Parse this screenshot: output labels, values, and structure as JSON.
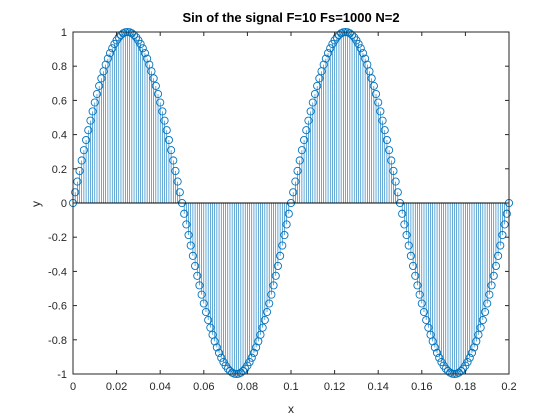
{
  "chart_data": {
    "type": "stem",
    "title": "Sin of the signal F=10 Fs=1000 N=2",
    "xlabel": "x",
    "ylabel": "y",
    "xlim": [
      0,
      0.2
    ],
    "ylim": [
      -1,
      1
    ],
    "x_ticks": [
      "0",
      "0.02",
      "0.04",
      "0.06",
      "0.08",
      "0.1",
      "0.12",
      "0.14",
      "0.16",
      "0.18",
      "0.2"
    ],
    "y_ticks": [
      "-1",
      "-0.8",
      "-0.6",
      "-0.4",
      "-0.2",
      "0",
      "0.2",
      "0.4",
      "0.6",
      "0.8",
      "1"
    ],
    "grid": false,
    "series": [
      {
        "frequency_hz": 10,
        "sampling_rate_hz": 1000,
        "periods": 2,
        "x_start": 0,
        "x_end": 0.2,
        "x_step": 0.001,
        "sample_count": 201,
        "function": "y = sin(2*pi*10*x)",
        "color": "#0072BD",
        "marker": "circle",
        "stem_line_color": "#0072BD"
      }
    ]
  }
}
